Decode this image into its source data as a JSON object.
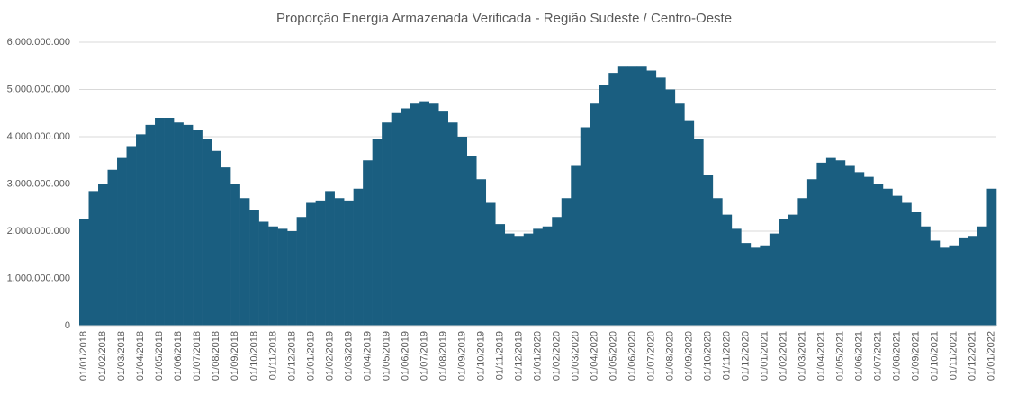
{
  "chart_data": {
    "type": "bar",
    "title": "Proporção Energia Armazenada Verificada - Região Sudeste / Centro-Oeste",
    "color": "#1a5e80",
    "grid": true,
    "ylim": [
      0,
      6000000000
    ],
    "yticks": [
      0,
      {
        "value": 1000000000,
        "label": "1.000.000.000"
      },
      {
        "value": 2000000000,
        "label": "2.000.000.000"
      },
      {
        "value": 3000000000,
        "label": "3.000.000.000"
      },
      {
        "value": 4000000000,
        "label": "4.000.000.000"
      },
      {
        "value": 5000000000,
        "label": "5.000.000.000"
      },
      {
        "value": 6000000000,
        "label": "6.000.000.000"
      }
    ],
    "categories": [
      "01/01/2018",
      null,
      "01/02/2018",
      null,
      "01/03/2018",
      null,
      "01/04/2018",
      null,
      "01/05/2018",
      null,
      "01/06/2018",
      null,
      "01/07/2018",
      null,
      "01/08/2018",
      null,
      "01/09/2018",
      null,
      "01/10/2018",
      null,
      "01/11/2018",
      null,
      "01/12/2018",
      null,
      "01/01/2019",
      null,
      "01/02/2019",
      null,
      "01/03/2019",
      null,
      "01/04/2019",
      null,
      "01/05/2019",
      null,
      "01/06/2019",
      null,
      "01/07/2019",
      null,
      "01/08/2019",
      null,
      "01/09/2019",
      null,
      "01/10/2019",
      null,
      "01/11/2019",
      null,
      "01/12/2019",
      null,
      "01/01/2020",
      null,
      "01/02/2020",
      null,
      "01/03/2020",
      null,
      "01/04/2020",
      null,
      "01/05/2020",
      null,
      "01/06/2020",
      null,
      "01/07/2020",
      null,
      "01/08/2020",
      null,
      "01/09/2020",
      null,
      "01/10/2020",
      null,
      "01/11/2020",
      null,
      "01/12/2020",
      null,
      "01/01/2021",
      null,
      "01/02/2021",
      null,
      "01/03/2021",
      null,
      "01/04/2021",
      null,
      "01/05/2021",
      null,
      "01/06/2021",
      null,
      "01/07/2021",
      null,
      "01/08/2021",
      null,
      "01/09/2021",
      null,
      "01/10/2021",
      null,
      "01/11/2021",
      null,
      "01/12/2021",
      null,
      "01/01/2022"
    ],
    "values": [
      2250000000,
      2850000000,
      3000000000,
      3300000000,
      3550000000,
      3800000000,
      4050000000,
      4250000000,
      4400000000,
      4400000000,
      4300000000,
      4250000000,
      4150000000,
      3950000000,
      3700000000,
      3350000000,
      3000000000,
      2700000000,
      2450000000,
      2200000000,
      2100000000,
      2050000000,
      2000000000,
      2300000000,
      2600000000,
      2650000000,
      2850000000,
      2700000000,
      2650000000,
      2900000000,
      3500000000,
      3950000000,
      4300000000,
      4500000000,
      4600000000,
      4700000000,
      4750000000,
      4700000000,
      4550000000,
      4300000000,
      4000000000,
      3600000000,
      3100000000,
      2600000000,
      2150000000,
      1950000000,
      1900000000,
      1950000000,
      2050000000,
      2100000000,
      2300000000,
      2700000000,
      3400000000,
      4200000000,
      4700000000,
      5100000000,
      5350000000,
      5500000000,
      5500000000,
      5500000000,
      5400000000,
      5250000000,
      5000000000,
      4700000000,
      4350000000,
      3950000000,
      3200000000,
      2700000000,
      2350000000,
      2050000000,
      1750000000,
      1650000000,
      1700000000,
      1950000000,
      2250000000,
      2350000000,
      2700000000,
      3100000000,
      3450000000,
      3550000000,
      3500000000,
      3400000000,
      3250000000,
      3150000000,
      3000000000,
      2900000000,
      2750000000,
      2600000000,
      2400000000,
      2100000000,
      1800000000,
      1650000000,
      1700000000,
      1850000000,
      1900000000,
      2100000000,
      2900000000
    ]
  }
}
